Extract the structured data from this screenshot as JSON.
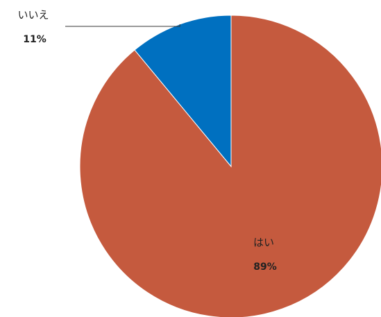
{
  "chart_data": {
    "type": "pie",
    "categories": [
      "はい",
      "いいえ"
    ],
    "values": [
      89,
      11
    ],
    "value_labels": [
      "89%",
      "11%"
    ],
    "colors": [
      "#c55a3e",
      "#0070c0"
    ]
  }
}
